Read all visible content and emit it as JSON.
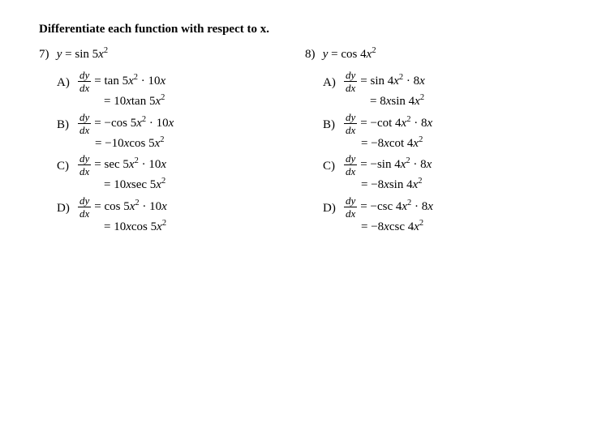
{
  "instruction": "Differentiate each function with respect to x.",
  "text_color": "#000000",
  "background_color": "#ffffff",
  "font_family": "Times New Roman",
  "problems": [
    {
      "number": "7)",
      "stem_prefix": "y = sin 5",
      "stem_var": "x",
      "stem_exp": "2",
      "options": [
        {
          "letter": "A)",
          "line1_before": "= tan 5",
          "line1_mid_var": "x",
          "line1_mid_exp": "2",
          "line1_after": " · 10",
          "line1_end_var": "x",
          "line2_prefix": "= 10",
          "line2_mid_var": "x",
          "line2_mid_text": "tan 5",
          "line2_end_var": "x",
          "line2_end_exp": "2",
          "line2_class": "line2"
        },
        {
          "letter": "B)",
          "line1_before": "= −cos 5",
          "line1_mid_var": "x",
          "line1_mid_exp": "2",
          "line1_after": " · 10",
          "line1_end_var": "x",
          "line2_prefix": "= −10",
          "line2_mid_var": "x",
          "line2_mid_text": "cos 5",
          "line2_end_var": "x",
          "line2_end_exp": "2",
          "line2_class": "line2-n"
        },
        {
          "letter": "C)",
          "line1_before": "= sec 5",
          "line1_mid_var": "x",
          "line1_mid_exp": "2",
          "line1_after": " · 10",
          "line1_end_var": "x",
          "line2_prefix": "= 10",
          "line2_mid_var": "x",
          "line2_mid_text": "sec 5",
          "line2_end_var": "x",
          "line2_end_exp": "2",
          "line2_class": "line2"
        },
        {
          "letter": "D)",
          "line1_before": "= cos 5",
          "line1_mid_var": "x",
          "line1_mid_exp": "2",
          "line1_after": " · 10",
          "line1_end_var": "x",
          "line2_prefix": "= 10",
          "line2_mid_var": "x",
          "line2_mid_text": "cos 5",
          "line2_end_var": "x",
          "line2_end_exp": "2",
          "line2_class": "line2"
        }
      ]
    },
    {
      "number": "8)",
      "stem_prefix": "y = cos 4",
      "stem_var": "x",
      "stem_exp": "2",
      "options": [
        {
          "letter": "A)",
          "line1_before": "= sin 4",
          "line1_mid_var": "x",
          "line1_mid_exp": "2",
          "line1_after": " · 8",
          "line1_end_var": "x",
          "line2_prefix": "= 8",
          "line2_mid_var": "x",
          "line2_mid_text": "sin 4",
          "line2_end_var": "x",
          "line2_end_exp": "2",
          "line2_class": "line2"
        },
        {
          "letter": "B)",
          "line1_before": "= −cot 4",
          "line1_mid_var": "x",
          "line1_mid_exp": "2",
          "line1_after": " · 8",
          "line1_end_var": "x",
          "line2_prefix": "= −8",
          "line2_mid_var": "x",
          "line2_mid_text": "cot 4",
          "line2_end_var": "x",
          "line2_end_exp": "2",
          "line2_class": "line2-n"
        },
        {
          "letter": "C)",
          "line1_before": "= −sin 4",
          "line1_mid_var": "x",
          "line1_mid_exp": "2",
          "line1_after": " · 8",
          "line1_end_var": "x",
          "line2_prefix": "= −8",
          "line2_mid_var": "x",
          "line2_mid_text": "sin 4",
          "line2_end_var": "x",
          "line2_end_exp": "2",
          "line2_class": "line2-n"
        },
        {
          "letter": "D)",
          "line1_before": "= −csc 4",
          "line1_mid_var": "x",
          "line1_mid_exp": "2",
          "line1_after": " · 8",
          "line1_end_var": "x",
          "line2_prefix": "= −8",
          "line2_mid_var": "x",
          "line2_mid_text": "csc 4",
          "line2_end_var": "x",
          "line2_end_exp": "2",
          "line2_class": "line2-n"
        }
      ]
    }
  ],
  "frac_top": "dy",
  "frac_bot": "dx"
}
